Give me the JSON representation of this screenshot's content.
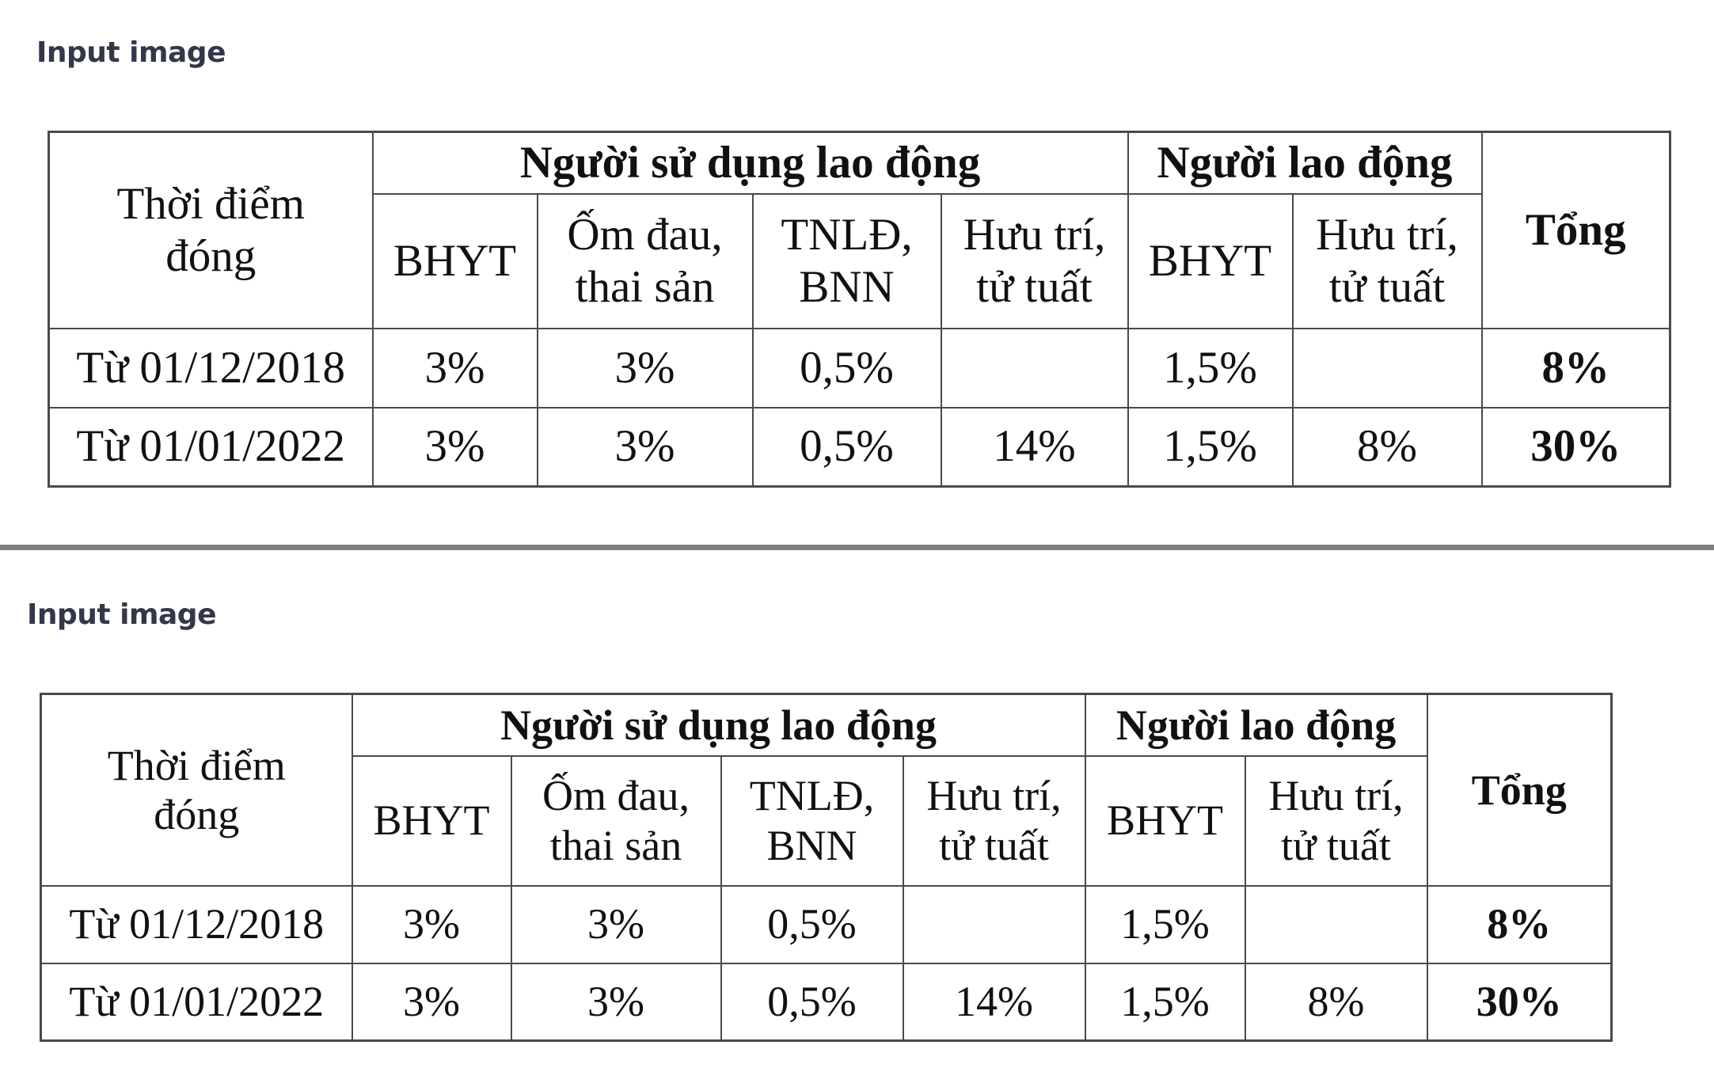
{
  "screens": [
    {
      "label": "Input image",
      "table": {
        "row_header": "Thời điểm đóng",
        "group_employer": "Người sử dụng lao động",
        "group_employee": "Người lao động",
        "total_header": "Tổng",
        "employer_cols": [
          "BHYT",
          "Ốm đau, thai sản",
          "TNLĐ, BNN",
          "Hưu trí, tử tuất"
        ],
        "employee_cols": [
          "BHYT",
          "Hưu trí, tử tuất"
        ],
        "rows": [
          {
            "period": "Từ 01/12/2018",
            "cells": [
              "3%",
              "3%",
              "0,5%",
              "",
              "1,5%",
              ""
            ],
            "total": "8%"
          },
          {
            "period": "Từ 01/01/2022",
            "cells": [
              "3%",
              "3%",
              "0,5%",
              "14%",
              "1,5%",
              "8%"
            ],
            "total": "30%"
          }
        ]
      }
    },
    {
      "label": "Input image",
      "table": {
        "row_header": "Thời điểm đóng",
        "group_employer": "Người sử dụng lao động",
        "group_employee": "Người lao động",
        "total_header": "Tổng",
        "employer_cols": [
          "BHYT",
          "Ốm đau, thai sản",
          "TNLĐ, BNN",
          "Hưu trí, tử tuất"
        ],
        "employee_cols": [
          "BHYT",
          "Hưu trí, tử tuất"
        ],
        "rows": [
          {
            "period": "Từ 01/12/2018",
            "cells": [
              "3%",
              "3%",
              "0,5%",
              "",
              "1,5%",
              ""
            ],
            "total": "8%"
          },
          {
            "period": "Từ 01/01/2022",
            "cells": [
              "3%",
              "3%",
              "0,5%",
              "14%",
              "1,5%",
              "8%"
            ],
            "total": "30%"
          }
        ]
      }
    }
  ]
}
